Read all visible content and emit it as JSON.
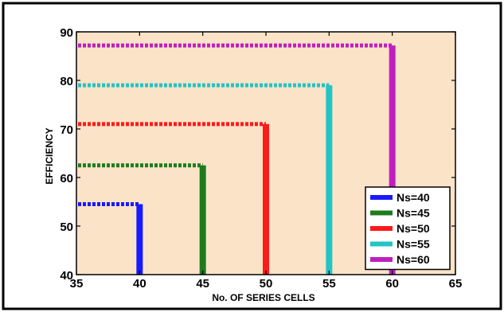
{
  "chart_data": {
    "type": "line",
    "title": "",
    "xlabel": "No. OF SERIES CELLS",
    "ylabel": "EFFICIENCY",
    "xlim": [
      35,
      65
    ],
    "ylim": [
      40,
      90
    ],
    "xticks": [
      35,
      40,
      45,
      50,
      55,
      60,
      65
    ],
    "yticks": [
      40,
      50,
      60,
      70,
      80,
      90
    ],
    "grid": false,
    "legend_position": "bottom-right",
    "background_color": "#fbe3c8",
    "outer_background_color": "#ffffff",
    "series": [
      {
        "name": "Ns=40",
        "color": "#1a1aff",
        "x": 40,
        "y": 54.5
      },
      {
        "name": "Ns=45",
        "color": "#1c7c1c",
        "x": 45,
        "y": 62.5
      },
      {
        "name": "Ns=50",
        "color": "#ff1a1a",
        "x": 50,
        "y": 71
      },
      {
        "name": "Ns=55",
        "color": "#22c4c4",
        "x": 55,
        "y": 79
      },
      {
        "name": "Ns=60",
        "color": "#c01ec0",
        "x": 60,
        "y": 87.2
      }
    ]
  }
}
